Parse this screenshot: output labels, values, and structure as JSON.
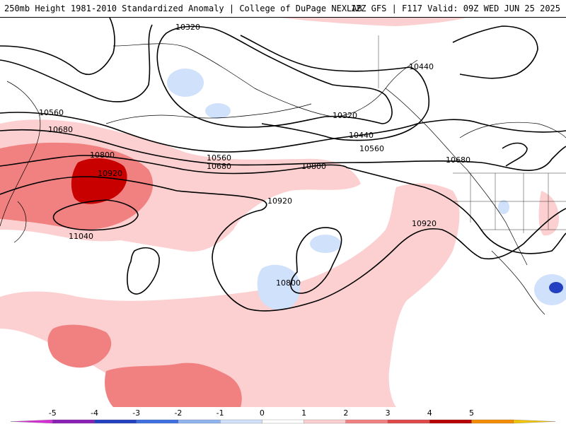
{
  "header": {
    "title_left": "250mb Height 1981-2010 Standardized Anomaly | College of DuPage NEXLAB",
    "title_right": "12Z GFS | F117 Valid: 09Z WED JUN 25 2025"
  },
  "contours": {
    "labels": [
      "10320",
      "10440",
      "10560",
      "10680",
      "10800",
      "10920",
      "11040"
    ]
  },
  "colorbar": {
    "ticks": [
      "-5",
      "-4",
      "-3",
      "-2",
      "-1",
      "0",
      "1",
      "2",
      "3",
      "4",
      "5"
    ],
    "colors": [
      "#d62ed6",
      "#8a1fb8",
      "#2240c0",
      "#3e6fe0",
      "#8fb3ef",
      "#cfe1fb",
      "#ffffff",
      "#fcd0d0",
      "#f18080",
      "#e04848",
      "#b80000",
      "#f58c00",
      "#f2c400"
    ]
  },
  "map_colors": {
    "ocean": "#ffffff",
    "land_border": "#000000",
    "anom_pos1": "#fcd0d0",
    "anom_pos2": "#f18080",
    "anom_pos3": "#c80000",
    "anom_neg1": "#cfe1fb",
    "anom_neg3": "#2240c0"
  }
}
